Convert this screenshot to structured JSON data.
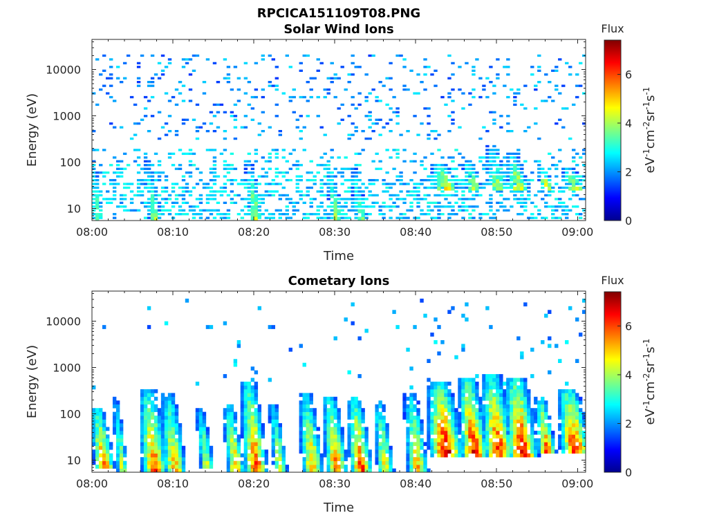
{
  "figure_title": "RPCICA151109T08.PNG",
  "colormap": [
    "#00008f",
    "#0000ff",
    "#0080ff",
    "#00ffff",
    "#80ff80",
    "#ffff00",
    "#ff8000",
    "#ff0000",
    "#800000"
  ],
  "chart_data": [
    {
      "type": "heatmap",
      "title": "Solar Wind Ions",
      "xlabel": "Time",
      "ylabel": "Energy (eV)",
      "x_ticks": [
        "08:00",
        "08:10",
        "08:20",
        "08:30",
        "08:40",
        "08:50",
        "09:00"
      ],
      "x_range_minutes": [
        0,
        61
      ],
      "y_ticks": [
        "10",
        "100",
        "1000",
        "10000"
      ],
      "y_scale": "log",
      "y_range": [
        5.5,
        45000
      ],
      "colorbar": {
        "title": "Flux",
        "label": "eV-1cm-2sr-1s-1",
        "ticks": [
          "0",
          "2",
          "4",
          "6"
        ],
        "range": [
          0,
          7.4
        ]
      },
      "background_level": 1.8,
      "upper_scatter": {
        "energy_range": [
          300,
          20000
        ],
        "level": 1.3
      },
      "bursts": [
        {
          "t": 0.5,
          "e_top": 150,
          "e_bottom": 6,
          "peak": 3.8,
          "width_min": 1.0
        },
        {
          "t": 7.5,
          "e_top": 90,
          "e_bottom": 6,
          "peak": 4.3,
          "width_min": 1.0
        },
        {
          "t": 20.0,
          "e_top": 100,
          "e_bottom": 6,
          "peak": 4.5,
          "width_min": 1.0
        },
        {
          "t": 30.0,
          "e_top": 60,
          "e_bottom": 6,
          "peak": 4.3,
          "width_min": 1.0
        },
        {
          "t": 33.0,
          "e_top": 70,
          "e_bottom": 6,
          "peak": 4.0,
          "width_min": 1.0
        },
        {
          "t": 43.5,
          "e_top": 90,
          "e_bottom": 25,
          "peak": 5.3,
          "width_min": 1.8
        },
        {
          "t": 47.0,
          "e_top": 110,
          "e_bottom": 25,
          "peak": 4.9,
          "width_min": 1.2
        },
        {
          "t": 50.0,
          "e_top": 200,
          "e_bottom": 25,
          "peak": 4.6,
          "width_min": 1.5
        },
        {
          "t": 52.5,
          "e_top": 150,
          "e_bottom": 25,
          "peak": 5.0,
          "width_min": 1.5
        },
        {
          "t": 56.0,
          "e_top": 100,
          "e_bottom": 25,
          "peak": 4.8,
          "width_min": 1.0
        },
        {
          "t": 59.5,
          "e_top": 70,
          "e_bottom": 25,
          "peak": 5.2,
          "width_min": 1.5
        }
      ]
    },
    {
      "type": "heatmap",
      "title": "Cometary Ions",
      "xlabel": "Time",
      "ylabel": "Energy (eV)",
      "x_ticks": [
        "08:00",
        "08:10",
        "08:20",
        "08:30",
        "08:40",
        "08:50",
        "09:00"
      ],
      "x_range_minutes": [
        0,
        61
      ],
      "y_ticks": [
        "10",
        "100",
        "1000",
        "10000"
      ],
      "y_scale": "log",
      "y_range": [
        5.5,
        45000
      ],
      "colorbar": {
        "title": "Flux",
        "label": "eV-1cm-2sr-1s-1",
        "ticks": [
          "0",
          "2",
          "4",
          "6"
        ],
        "range": [
          0,
          7.4
        ]
      },
      "background_level": 0,
      "upper_scatter": {
        "energy_range": [
          300,
          30000
        ],
        "level": 1.4
      },
      "bursts": [
        {
          "t": 1.3,
          "e_top": 110,
          "e_bottom": 7,
          "peak": 6.2,
          "width_min": 1.4
        },
        {
          "t": 3.5,
          "e_top": 200,
          "e_bottom": 7,
          "peak": 4.5,
          "width_min": 0.8
        },
        {
          "t": 7.5,
          "e_top": 300,
          "e_bottom": 7,
          "peak": 6.0,
          "width_min": 1.8
        },
        {
          "t": 10.0,
          "e_top": 250,
          "e_bottom": 7,
          "peak": 5.3,
          "width_min": 1.6
        },
        {
          "t": 14.0,
          "e_top": 120,
          "e_bottom": 7,
          "peak": 4.8,
          "width_min": 1.0
        },
        {
          "t": 17.5,
          "e_top": 150,
          "e_bottom": 7,
          "peak": 5.5,
          "width_min": 1.2
        },
        {
          "t": 20.0,
          "e_top": 400,
          "e_bottom": 7,
          "peak": 6.3,
          "width_min": 1.6
        },
        {
          "t": 23.0,
          "e_top": 150,
          "e_bottom": 7,
          "peak": 4.8,
          "width_min": 1.0
        },
        {
          "t": 27.0,
          "e_top": 250,
          "e_bottom": 7,
          "peak": 5.5,
          "width_min": 1.5
        },
        {
          "t": 30.0,
          "e_top": 200,
          "e_bottom": 7,
          "peak": 6.0,
          "width_min": 1.5
        },
        {
          "t": 33.0,
          "e_top": 200,
          "e_bottom": 7,
          "peak": 6.2,
          "width_min": 1.5
        },
        {
          "t": 36.0,
          "e_top": 180,
          "e_bottom": 7,
          "peak": 5.0,
          "width_min": 1.2
        },
        {
          "t": 40.0,
          "e_top": 250,
          "e_bottom": 7,
          "peak": 5.3,
          "width_min": 1.5
        },
        {
          "t": 43.5,
          "e_top": 400,
          "e_bottom": 15,
          "peak": 7.0,
          "width_min": 2.2
        },
        {
          "t": 47.0,
          "e_top": 500,
          "e_bottom": 15,
          "peak": 6.8,
          "width_min": 1.8
        },
        {
          "t": 50.0,
          "e_top": 600,
          "e_bottom": 15,
          "peak": 6.5,
          "width_min": 2.0
        },
        {
          "t": 53.0,
          "e_top": 500,
          "e_bottom": 15,
          "peak": 7.0,
          "width_min": 2.0
        },
        {
          "t": 56.0,
          "e_top": 200,
          "e_bottom": 15,
          "peak": 6.2,
          "width_min": 1.2
        },
        {
          "t": 59.5,
          "e_top": 300,
          "e_bottom": 15,
          "peak": 6.8,
          "width_min": 2.0
        }
      ]
    }
  ]
}
